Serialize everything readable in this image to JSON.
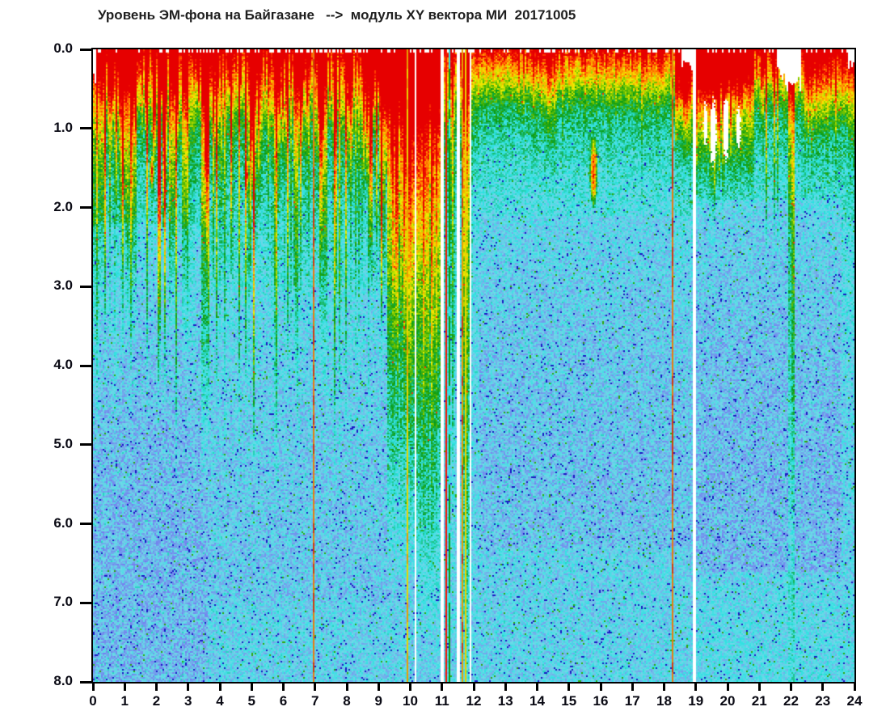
{
  "title": "Уровень ЭМ-фона на Байгазане   -->  модуль XY вектора МИ  20171005",
  "chart_data": {
    "type": "heatmap",
    "subtype": "spectrogram",
    "title": "Уровень ЭМ-фона на Байгазане   -->  модуль XY вектора МИ  20171005",
    "station": "Байгазан",
    "quantity": "модуль XY вектора МИ",
    "date": "20171005",
    "xlabel": "",
    "ylabel": "",
    "xlim": [
      0,
      24
    ],
    "ylim": [
      0,
      8
    ],
    "y_inverted": true,
    "x_tick_step": 1,
    "y_tick_step": 1,
    "grid": false,
    "legend": "none",
    "noise_amplitude": 0.17,
    "colormap": [
      [
        0.0,
        "#0808b0"
      ],
      [
        0.13,
        "#3535e5"
      ],
      [
        0.25,
        "#7575f0"
      ],
      [
        0.38,
        "#70d8e8"
      ],
      [
        0.48,
        "#2ee2e2"
      ],
      [
        0.6,
        "#0a9c14"
      ],
      [
        0.7,
        "#7ec800"
      ],
      [
        0.77,
        "#f0ee00"
      ],
      [
        0.87,
        "#ff9400"
      ],
      [
        0.94,
        "#ff3a00"
      ],
      [
        1.0,
        "#e60000"
      ]
    ],
    "intensity_profile": [
      [
        0,
        0.95
      ],
      [
        0.1,
        0.88
      ],
      [
        0.3,
        0.8
      ],
      [
        0.55,
        0.72
      ],
      [
        0.8,
        0.63
      ],
      [
        1.1,
        0.55
      ],
      [
        1.5,
        0.5
      ],
      [
        2.2,
        0.455
      ],
      [
        3,
        0.425
      ],
      [
        4.5,
        0.4
      ],
      [
        6,
        0.39
      ],
      [
        8,
        0.39
      ]
    ],
    "band_depth_scale": [
      {
        "h0": 0,
        "h1": 11.95,
        "s": 1.0
      },
      {
        "h0": 11.95,
        "h1": 18.32,
        "s": 1.45
      },
      {
        "h0": 18.32,
        "h1": 18.95,
        "s": 1.1
      },
      {
        "h0": 18.95,
        "h1": 21.5,
        "s": 1.35
      },
      {
        "h0": 21.5,
        "h1": 22.3,
        "s": 1.45
      },
      {
        "h0": 22.3,
        "h1": 24.01,
        "s": 1.15
      }
    ],
    "streak_regions": [
      {
        "h0": 0,
        "h1": 10.15,
        "amp": 0.5,
        "dmax": 5.5
      },
      {
        "h0": 10.15,
        "h1": 11.95,
        "amp": 0.22,
        "dmax": 8
      },
      {
        "h0": 12,
        "h1": 18.3,
        "amp": 0.17,
        "dmax": 1.7
      },
      {
        "h0": 18.32,
        "h1": 19,
        "amp": 0.3,
        "dmax": 1.6
      },
      {
        "h0": 19,
        "h1": 21.9,
        "amp": 0.3,
        "dmax": 2.4
      },
      {
        "h0": 21.9,
        "h1": 24.01,
        "amp": 0.22,
        "dmax": 1.8
      }
    ],
    "hot_columns": [
      {
        "h0": 9.25,
        "h1": 10.15,
        "boost": 0.45,
        "depth": 7
      },
      {
        "h0": 10.2,
        "h1": 11.0,
        "boost": 0.42,
        "depth": 7.5
      },
      {
        "h0": 11.6,
        "h1": 11.88,
        "boost": 0.35,
        "depth": 9
      },
      {
        "h0": 18.32,
        "h1": 18.9,
        "boost": 0.3,
        "depth": 1.5
      },
      {
        "h0": 19.0,
        "h1": 20.85,
        "boost": 0.34,
        "depth": 2.0
      },
      {
        "h0": 21.9,
        "h1": 22.12,
        "boost": 0.3,
        "depth": 9
      },
      {
        "h0": 22.3,
        "h1": 24.01,
        "boost": 0.1,
        "depth": 1.2
      }
    ],
    "blobs": [
      {
        "h": 15.78,
        "d": 1.55,
        "rh": 0.13,
        "rd": 0.5,
        "boost": 0.5
      },
      {
        "h": 1.85,
        "d": 1.55,
        "rh": 0.07,
        "rd": 0.22,
        "boost": 0.38
      },
      {
        "h": 4.85,
        "d": 1.6,
        "rh": 0.07,
        "rd": 0.22,
        "boost": 0.38
      }
    ],
    "data_gaps": [
      {
        "h": 10.17,
        "w": 0.08
      },
      {
        "h": 11.02,
        "w": 0.1
      },
      {
        "h": 11.52,
        "w": 0.08
      },
      {
        "h": 11.9,
        "w": 0.08
      },
      {
        "h": 18.95,
        "w": 0.1
      }
    ],
    "event_lines": [
      {
        "h": 6.96,
        "w": 0.07,
        "color": "#e87d10",
        "alt": "#d23c0a"
      },
      {
        "h": 9.9,
        "w": 0.05,
        "color": "#e8d400",
        "alt": "#e8a000"
      },
      {
        "h": 11.13,
        "w": 0.04,
        "color": "#f21600"
      },
      {
        "h": 11.22,
        "w": 0.04,
        "color": "#0a9c14",
        "alt": "#2ee2e2"
      },
      {
        "h": 11.65,
        "w": 0.05,
        "color": "#e8a000",
        "alt": "#d23c0a"
      },
      {
        "h": 11.74,
        "w": 0.04,
        "color": "#e8d400"
      },
      {
        "h": 11.82,
        "w": 0.04,
        "color": "#f21600",
        "alt": "#2ee2e2"
      },
      {
        "h": 18.26,
        "w": 0.07,
        "color": "#e87d10",
        "alt": "#d23c0a"
      }
    ],
    "white_patches": [
      {
        "h": 19.55,
        "d": 1.05,
        "rh": 0.1,
        "rd": 0.45
      },
      {
        "h": 19.95,
        "d": 1.0,
        "rh": 0.09,
        "rd": 0.42
      },
      {
        "h": 19.3,
        "d": 0.95,
        "rh": 0.06,
        "rd": 0.28
      },
      {
        "h": 20.35,
        "d": 1.0,
        "rh": 0.07,
        "rd": 0.3
      }
    ],
    "top_notches": [
      {
        "h0": 18.55,
        "h1": 18.9,
        "d": 0.22
      },
      {
        "h0": 21.55,
        "h1": 22.3,
        "d": 0.38
      },
      {
        "h0": 0,
        "h1": 0.08,
        "d": 0.35
      },
      {
        "h0": 23.82,
        "h1": 24.01,
        "d": 0.18
      }
    ],
    "shade_regions": [
      {
        "h0": 0,
        "h1": 3.6,
        "d0": 2.2,
        "d1": 8.2,
        "delta": -0.045
      },
      {
        "h0": 3.6,
        "h1": 10.3,
        "d0": 3.0,
        "d1": 7.0,
        "delta": -0.02
      },
      {
        "h0": 12.2,
        "h1": 19.0,
        "d0": 2.1,
        "d1": 6.3,
        "delta": -0.03
      },
      {
        "h0": 19.0,
        "h1": 23.6,
        "d0": 1.9,
        "d1": 6.6,
        "delta": -0.045
      },
      {
        "h0": 19.0,
        "h1": 24.01,
        "d0": 6.8,
        "d1": 8.2,
        "delta": 0.015
      }
    ]
  },
  "axes": {
    "y_ticks": [
      {
        "v": 0,
        "label": "0.0"
      },
      {
        "v": 1,
        "label": "1.0"
      },
      {
        "v": 2,
        "label": "2.0"
      },
      {
        "v": 3,
        "label": "3.0"
      },
      {
        "v": 4,
        "label": "4.0"
      },
      {
        "v": 5,
        "label": "5.0"
      },
      {
        "v": 6,
        "label": "6.0"
      },
      {
        "v": 7,
        "label": "7.0"
      },
      {
        "v": 8,
        "label": "8.0"
      }
    ],
    "x_ticks": [
      {
        "v": 0,
        "label": "0"
      },
      {
        "v": 1,
        "label": "1"
      },
      {
        "v": 2,
        "label": "2"
      },
      {
        "v": 3,
        "label": "3"
      },
      {
        "v": 4,
        "label": "4"
      },
      {
        "v": 5,
        "label": "5"
      },
      {
        "v": 6,
        "label": "6"
      },
      {
        "v": 7,
        "label": "7"
      },
      {
        "v": 8,
        "label": "8"
      },
      {
        "v": 9,
        "label": "9"
      },
      {
        "v": 10,
        "label": "10"
      },
      {
        "v": 11,
        "label": "11"
      },
      {
        "v": 12,
        "label": "12"
      },
      {
        "v": 13,
        "label": "13"
      },
      {
        "v": 14,
        "label": "14"
      },
      {
        "v": 15,
        "label": "15"
      },
      {
        "v": 16,
        "label": "16"
      },
      {
        "v": 17,
        "label": "17"
      },
      {
        "v": 18,
        "label": "18"
      },
      {
        "v": 19,
        "label": "19"
      },
      {
        "v": 20,
        "label": "20"
      },
      {
        "v": 21,
        "label": "21"
      },
      {
        "v": 22,
        "label": "22"
      },
      {
        "v": 23,
        "label": "23"
      },
      {
        "v": 24,
        "label": "24"
      }
    ]
  },
  "colors": {
    "background": "#ffffff",
    "frame": "#000000",
    "title_text": "#1f1f1f",
    "tick_text": "#0a0a14",
    "gap_white": "#ffffff",
    "event_orange": "#e87d10",
    "event_red": "#f21600"
  }
}
